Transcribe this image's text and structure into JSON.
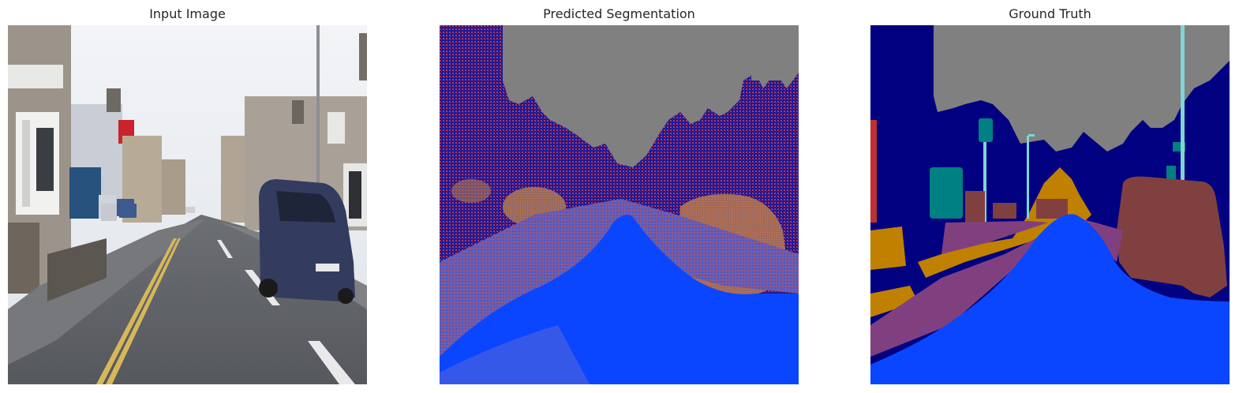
{
  "panels": [
    {
      "title": "Input Image"
    },
    {
      "title": "Predicted Segmentation"
    },
    {
      "title": "Ground Truth"
    }
  ],
  "colors": {
    "sky": "#808080",
    "building": "#000080",
    "road": "#0A46FF",
    "sidewalk": "#80407F",
    "car": "#804040",
    "tree": "#C08000",
    "sign": "#008080",
    "pole": "#7FD5D5",
    "pedestrian": "#C03030"
  }
}
